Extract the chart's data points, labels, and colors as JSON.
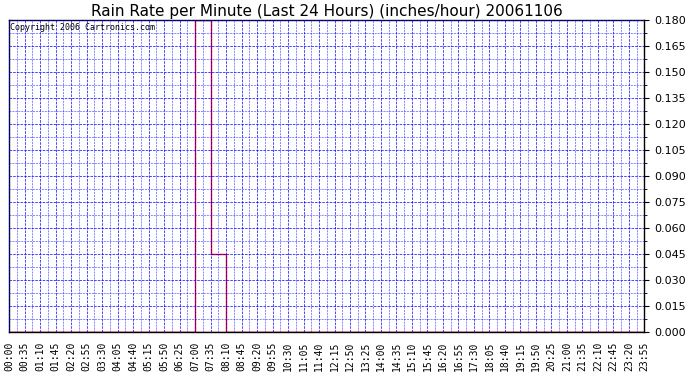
{
  "title": "Rain Rate per Minute (Last 24 Hours) (inches/hour) 20061106",
  "copyright": "Copyright 2006 Cartronics.com",
  "background_color": "#ffffff",
  "plot_bg_color": "#ffffff",
  "line_color": "#ff0000",
  "grid_color": "#0000ff",
  "border_color": "#000000",
  "ylim": [
    0.0,
    0.18
  ],
  "yticks": [
    0.0,
    0.015,
    0.03,
    0.045,
    0.06,
    0.075,
    0.09,
    0.105,
    0.12,
    0.135,
    0.15,
    0.165,
    0.18
  ],
  "x_labels": [
    "00:00",
    "00:35",
    "01:10",
    "01:45",
    "02:20",
    "02:55",
    "03:30",
    "04:05",
    "04:40",
    "05:15",
    "05:50",
    "06:25",
    "07:00",
    "07:35",
    "08:10",
    "08:45",
    "09:20",
    "09:55",
    "10:30",
    "11:05",
    "11:40",
    "12:15",
    "12:50",
    "13:25",
    "14:00",
    "14:35",
    "15:10",
    "15:45",
    "16:20",
    "16:55",
    "17:30",
    "18:05",
    "18:40",
    "19:15",
    "19:50",
    "20:25",
    "21:00",
    "21:35",
    "22:10",
    "22:45",
    "23:20",
    "23:55"
  ],
  "y_values": [
    0.0,
    0.0,
    0.0,
    0.0,
    0.0,
    0.0,
    0.0,
    0.0,
    0.0,
    0.0,
    0.0,
    0.0,
    0.18,
    0.045,
    0.0,
    0.0,
    0.0,
    0.0,
    0.0,
    0.0,
    0.0,
    0.0,
    0.0,
    0.0,
    0.0,
    0.0,
    0.0,
    0.0,
    0.0,
    0.0,
    0.0,
    0.0,
    0.0,
    0.0,
    0.0,
    0.0,
    0.0,
    0.0,
    0.0,
    0.0,
    0.0,
    0.0
  ],
  "title_fontsize": 11,
  "copyright_fontsize": 6,
  "tick_fontsize": 7,
  "ytick_fontsize": 8
}
